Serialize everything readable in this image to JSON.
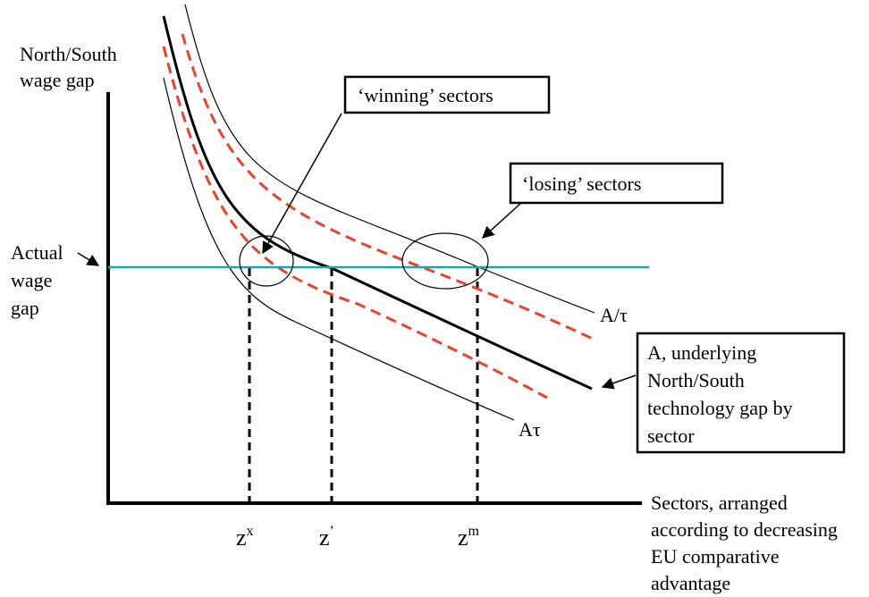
{
  "y_axis_label": [
    "North/South",
    "wage gap"
  ],
  "x_axis_label": [
    "Sectors, arranged",
    "according to decreasing",
    "EU comparative",
    "advantage"
  ],
  "wage_line_label": [
    "Actual",
    "wage",
    "gap"
  ],
  "callout_winning": "‘winning’ sectors",
  "callout_losing": "‘losing’ sectors",
  "curve_upper_label": "A/τ",
  "curve_lower_label": "Aτ",
  "curve_main_label": [
    "A, underlying",
    "North/South",
    "technology gap by",
    "sector"
  ],
  "ticks": [
    {
      "base": "z",
      "sup": "x"
    },
    {
      "base": "z",
      "sup": "’"
    },
    {
      "base": "z",
      "sup": "m"
    }
  ],
  "colors": {
    "wage_line": "#1aa5b0",
    "dashed_curves": "#e8432d",
    "axes": "#000000"
  }
}
